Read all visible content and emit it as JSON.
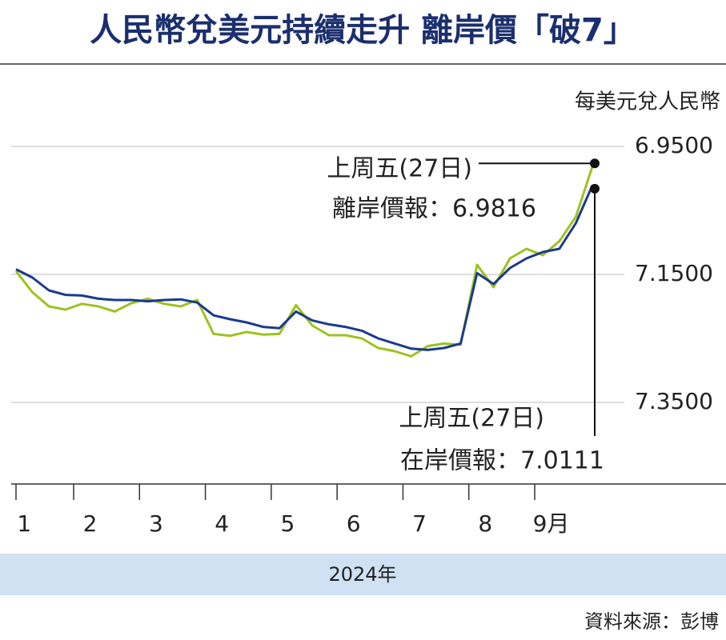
{
  "chart_data": {
    "type": "line",
    "title": "人民幣兌美元持續走升 離岸價「破7」",
    "y_label": "每美元兌人民幣",
    "x_label": "2024年",
    "source": "資料來源：彭博",
    "annotations": [
      "上周五(27日)",
      "離岸價報：6.9816",
      "上周五(27日)",
      "在岸價報：7.0111"
    ],
    "categories": [
      null,
      "1",
      null,
      null,
      null,
      "2",
      null,
      null,
      null,
      "3",
      null,
      null,
      null,
      "4",
      null,
      null,
      null,
      "5",
      null,
      null,
      null,
      "6",
      null,
      null,
      null,
      "7",
      null,
      null,
      null,
      "8",
      null,
      null,
      null,
      "9月",
      null,
      null
    ],
    "series": [
      {
        "color": "#1b3a8c",
        "values": [
          7.142,
          7.155,
          7.175,
          7.182,
          7.183,
          7.188,
          7.19,
          7.19,
          7.192,
          7.19,
          7.189,
          7.194,
          7.214,
          7.22,
          7.225,
          7.232,
          7.234,
          7.208,
          7.222,
          7.228,
          7.232,
          7.238,
          7.25,
          7.258,
          7.266,
          7.268,
          7.265,
          7.258,
          7.148,
          7.165,
          7.14,
          7.125,
          7.115,
          7.11,
          7.07,
          7.0111
        ]
      },
      {
        "color": "#9dc21f",
        "values": [
          7.145,
          7.178,
          7.2,
          7.205,
          7.196,
          7.2,
          7.208,
          7.195,
          7.188,
          7.196,
          7.2,
          7.19,
          7.243,
          7.246,
          7.24,
          7.244,
          7.243,
          7.198,
          7.23,
          7.245,
          7.245,
          7.25,
          7.265,
          7.27,
          7.278,
          7.262,
          7.258,
          7.26,
          7.135,
          7.17,
          7.125,
          7.11,
          7.12,
          7.098,
          7.06,
          6.9816
        ]
      }
    ],
    "ylim": [
      6.9,
      7.4775
    ],
    "y_inverted": true,
    "yticks": [
      {
        "value": 6.95,
        "label": "6.9500"
      },
      {
        "value": 7.15,
        "label": "7.1500"
      },
      {
        "value": 7.35,
        "label": "7.3500"
      }
    ],
    "grid": true
  }
}
